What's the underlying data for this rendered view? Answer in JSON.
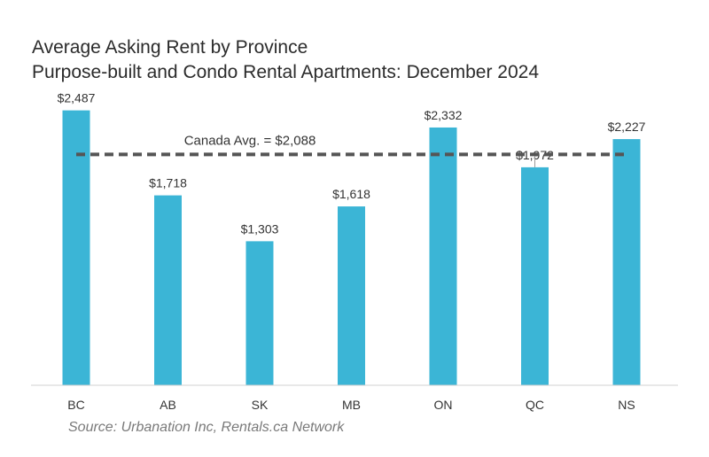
{
  "chart_data": {
    "type": "bar",
    "title": "Average Asking Rent by Province",
    "subtitle": "Purpose-built and Condo Rental Apartments: December 2024",
    "categories": [
      "BC",
      "AB",
      "SK",
      "MB",
      "ON",
      "QC",
      "NS"
    ],
    "values": [
      2487,
      1718,
      1303,
      1618,
      2332,
      1972,
      2227
    ],
    "value_labels": [
      "$2,487",
      "$1,718",
      "$1,303",
      "$1,618",
      "$2,332",
      "$1,972",
      "$2,227"
    ],
    "reference_line": {
      "value": 2088,
      "label": "Canada Avg. = $2,088",
      "style": "dashed"
    },
    "ylim": [
      0,
      2500
    ],
    "grid": false,
    "bar_color": "#3bb5d6",
    "reference_line_color": "#555555",
    "source": "Source: Urbanation Inc, Rentals.ca Network"
  }
}
